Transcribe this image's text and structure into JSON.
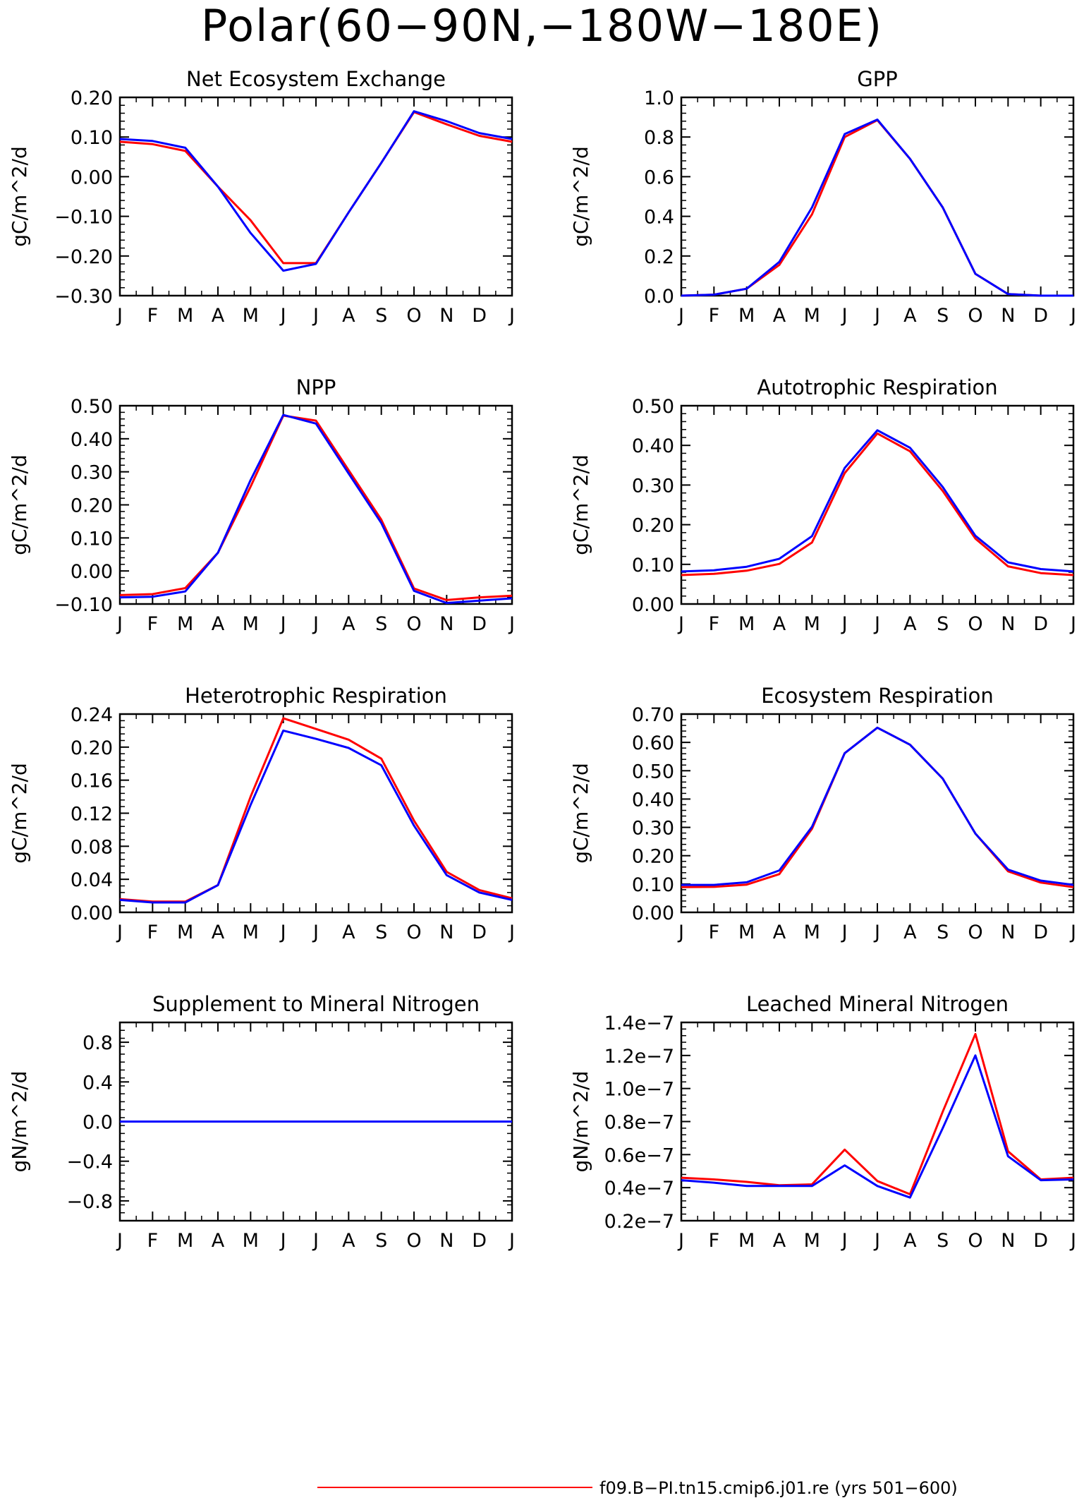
{
  "title": "Polar(60−90N,−180W−180E)",
  "legend": {
    "series_label": "f09.B−PI.tn15.cmip6.j01.re (yrs 501−600)",
    "series_color": "#ff0000"
  },
  "colors": {
    "series_a": "#ff0000",
    "series_b": "#0000ff"
  },
  "chart_data": [
    {
      "type": "line",
      "title": "Net Ecosystem Exchange",
      "ylabel": "gC/m^2/d",
      "categories": [
        "J",
        "F",
        "M",
        "A",
        "M",
        "J",
        "J",
        "A",
        "S",
        "O",
        "N",
        "D",
        "J"
      ],
      "ylim": [
        -0.3,
        0.2
      ],
      "yticks": [
        0.2,
        0.1,
        0.0,
        -0.1,
        -0.2,
        -0.3
      ],
      "yticklabels": [
        "0.20",
        "0.10",
        "0.00",
        "−0.10",
        "−0.20",
        "−0.30"
      ],
      "series": [
        {
          "values": [
            0.088,
            0.082,
            0.065,
            -0.025,
            -0.11,
            -0.218,
            -0.218,
            -0.09,
            0.035,
            0.163,
            0.132,
            0.103,
            0.088
          ]
        },
        {
          "values": [
            0.095,
            0.09,
            0.073,
            -0.025,
            -0.142,
            -0.237,
            -0.22,
            -0.09,
            0.035,
            0.165,
            0.14,
            0.11,
            0.095
          ]
        }
      ]
    },
    {
      "type": "line",
      "title": "GPP",
      "ylabel": "gC/m^2/d",
      "categories": [
        "J",
        "F",
        "M",
        "A",
        "M",
        "J",
        "J",
        "A",
        "S",
        "O",
        "N",
        "D",
        "J"
      ],
      "ylim": [
        0.0,
        1.0
      ],
      "yticks": [
        1.0,
        0.8,
        0.6,
        0.4,
        0.2,
        0.0
      ],
      "yticklabels": [
        "1.0",
        "0.8",
        "0.6",
        "0.4",
        "0.2",
        "0.0"
      ],
      "series": [
        {
          "values": [
            0.0,
            0.005,
            0.035,
            0.155,
            0.41,
            0.8,
            0.885,
            0.69,
            0.445,
            0.11,
            0.008,
            0.0,
            0.0
          ]
        },
        {
          "values": [
            0.0,
            0.005,
            0.035,
            0.17,
            0.445,
            0.815,
            0.888,
            0.69,
            0.445,
            0.11,
            0.008,
            0.0,
            0.0
          ]
        }
      ]
    },
    {
      "type": "line",
      "title": "NPP",
      "ylabel": "gC/m^2/d",
      "categories": [
        "J",
        "F",
        "M",
        "A",
        "M",
        "J",
        "J",
        "A",
        "S",
        "O",
        "N",
        "D",
        "J"
      ],
      "ylim": [
        -0.1,
        0.5
      ],
      "yticks": [
        0.5,
        0.4,
        0.3,
        0.2,
        0.1,
        0.0,
        -0.1
      ],
      "yticklabels": [
        "0.50",
        "0.40",
        "0.30",
        "0.20",
        "0.10",
        "0.00",
        "−0.10"
      ],
      "series": [
        {
          "values": [
            -0.073,
            -0.07,
            -0.052,
            0.055,
            0.255,
            0.47,
            0.455,
            0.305,
            0.155,
            -0.053,
            -0.088,
            -0.08,
            -0.075
          ]
        },
        {
          "values": [
            -0.08,
            -0.078,
            -0.062,
            0.055,
            0.275,
            0.472,
            0.446,
            0.295,
            0.145,
            -0.06,
            -0.097,
            -0.09,
            -0.083
          ]
        }
      ]
    },
    {
      "type": "line",
      "title": "Autotrophic Respiration",
      "ylabel": "gC/m^2/d",
      "categories": [
        "J",
        "F",
        "M",
        "A",
        "M",
        "J",
        "J",
        "A",
        "S",
        "O",
        "N",
        "D",
        "J"
      ],
      "ylim": [
        0.0,
        0.5
      ],
      "yticks": [
        0.5,
        0.4,
        0.3,
        0.2,
        0.1,
        0.0
      ],
      "yticklabels": [
        "0.50",
        "0.40",
        "0.30",
        "0.20",
        "0.10",
        "0.00"
      ],
      "series": [
        {
          "values": [
            0.073,
            0.076,
            0.084,
            0.101,
            0.155,
            0.33,
            0.43,
            0.385,
            0.285,
            0.165,
            0.095,
            0.078,
            0.073
          ]
        },
        {
          "values": [
            0.082,
            0.085,
            0.094,
            0.114,
            0.171,
            0.343,
            0.438,
            0.394,
            0.295,
            0.172,
            0.105,
            0.088,
            0.082
          ]
        }
      ]
    },
    {
      "type": "line",
      "title": "Heterotrophic Respiration",
      "ylabel": "gC/m^2/d",
      "categories": [
        "J",
        "F",
        "M",
        "A",
        "M",
        "J",
        "J",
        "A",
        "S",
        "O",
        "N",
        "D",
        "J"
      ],
      "ylim": [
        0.0,
        0.24
      ],
      "yticks": [
        0.24,
        0.2,
        0.16,
        0.12,
        0.08,
        0.04,
        0.0
      ],
      "yticklabels": [
        "0.24",
        "0.20",
        "0.16",
        "0.12",
        "0.08",
        "0.04",
        "0.00"
      ],
      "series": [
        {
          "values": [
            0.016,
            0.013,
            0.013,
            0.033,
            0.14,
            0.235,
            0.222,
            0.209,
            0.186,
            0.111,
            0.049,
            0.027,
            0.017
          ]
        },
        {
          "values": [
            0.015,
            0.012,
            0.012,
            0.033,
            0.13,
            0.22,
            0.21,
            0.199,
            0.178,
            0.105,
            0.045,
            0.024,
            0.015
          ]
        }
      ]
    },
    {
      "type": "line",
      "title": "Ecosystem Respiration",
      "ylabel": "gC/m^2/d",
      "categories": [
        "J",
        "F",
        "M",
        "A",
        "M",
        "J",
        "J",
        "A",
        "S",
        "O",
        "N",
        "D",
        "J"
      ],
      "ylim": [
        0.0,
        0.7
      ],
      "yticks": [
        0.7,
        0.6,
        0.5,
        0.4,
        0.3,
        0.2,
        0.1,
        0.0
      ],
      "yticklabels": [
        "0.70",
        "0.60",
        "0.50",
        "0.40",
        "0.30",
        "0.20",
        "0.10",
        "0.00"
      ],
      "series": [
        {
          "values": [
            0.089,
            0.09,
            0.098,
            0.135,
            0.295,
            0.562,
            0.652,
            0.592,
            0.472,
            0.278,
            0.145,
            0.105,
            0.089
          ]
        },
        {
          "values": [
            0.097,
            0.097,
            0.106,
            0.148,
            0.302,
            0.562,
            0.652,
            0.592,
            0.472,
            0.278,
            0.151,
            0.112,
            0.097
          ]
        }
      ]
    },
    {
      "type": "line",
      "title": "Supplement to Mineral Nitrogen",
      "ylabel": "gN/m^2/d",
      "categories": [
        "J",
        "F",
        "M",
        "A",
        "M",
        "J",
        "J",
        "A",
        "S",
        "O",
        "N",
        "D",
        "J"
      ],
      "ylim": [
        -1.0,
        1.0
      ],
      "yticks": [
        0.8,
        0.4,
        0.0,
        -0.4,
        -0.8
      ],
      "yticklabels": [
        "0.8",
        "0.4",
        "0.0",
        "−0.4",
        "−0.8"
      ],
      "series": [
        {
          "values": [
            0,
            0,
            0,
            0,
            0,
            0,
            0,
            0,
            0,
            0,
            0,
            0,
            0
          ]
        },
        {
          "values": [
            0,
            0,
            0,
            0,
            0,
            0,
            0,
            0,
            0,
            0,
            0,
            0,
            0
          ]
        }
      ]
    },
    {
      "type": "line",
      "title": "Leached Mineral Nitrogen",
      "ylabel": "gN/m^2/d",
      "categories": [
        "J",
        "F",
        "M",
        "A",
        "M",
        "J",
        "J",
        "A",
        "S",
        "O",
        "N",
        "D",
        "J"
      ],
      "ylim": [
        2e-08,
        1.4e-07
      ],
      "yticks": [
        1.4e-07,
        1.2e-07,
        1e-07,
        8e-08,
        6e-08,
        4e-08,
        2e-08
      ],
      "yticklabels": [
        "1.4e−7",
        "1.2e−7",
        "1.0e−7",
        "0.8e−7",
        "0.6e−7",
        "0.4e−7",
        "0.2e−7"
      ],
      "series": [
        {
          "values": [
            4.6e-08,
            4.5e-08,
            4.35e-08,
            4.15e-08,
            4.2e-08,
            6.3e-08,
            4.4e-08,
            3.6e-08,
            8.6e-08,
            1.33e-07,
            6.2e-08,
            4.5e-08,
            4.6e-08
          ]
        },
        {
          "values": [
            4.45e-08,
            4.3e-08,
            4.1e-08,
            4.1e-08,
            4.1e-08,
            5.35e-08,
            4.1e-08,
            3.4e-08,
            7.6e-08,
            1.2e-07,
            5.9e-08,
            4.45e-08,
            4.5e-08
          ]
        }
      ]
    }
  ]
}
